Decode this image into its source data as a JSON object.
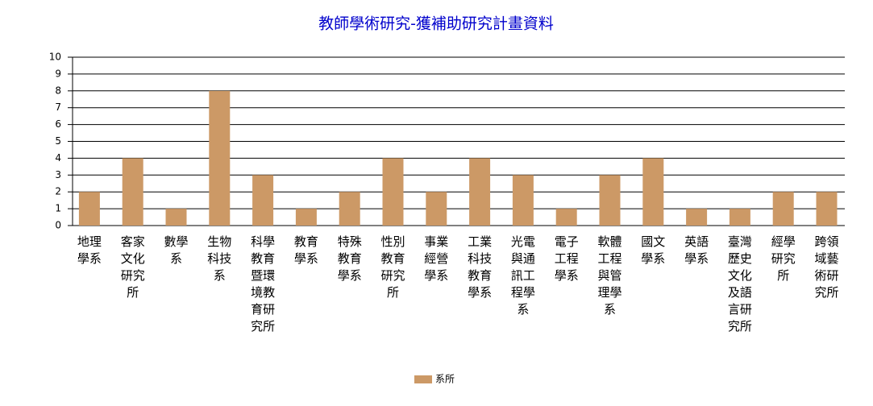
{
  "chart_data": {
    "type": "bar",
    "title": "教師學術研究-獲補助研究計畫資料",
    "categories": [
      "地理學系",
      "客家文化研究所",
      "數學系",
      "生物科技系",
      "科學教育暨環境教育研究所",
      "教育學系",
      "特殊教育學系",
      "性別教育研究所",
      "事業經營學系",
      "工業科技教育學系",
      "光電與通訊工程學系",
      "電子工程學系",
      "軟體工程與管理學系",
      "國文學系",
      "英語學系",
      "臺灣歷史文化及語言研究所",
      "經學研究所",
      "跨領域藝術研究所"
    ],
    "series": [
      {
        "name": "系所",
        "color": "#cc9966",
        "values": [
          2,
          4,
          1,
          8,
          3,
          1,
          2,
          4,
          2,
          4,
          3,
          1,
          3,
          4,
          1,
          1,
          2,
          2
        ]
      }
    ],
    "ylim": [
      0,
      10
    ],
    "yticks": [
      0,
      1,
      2,
      3,
      4,
      5,
      6,
      7,
      8,
      9,
      10
    ],
    "grid": true,
    "legend": "bottom"
  }
}
